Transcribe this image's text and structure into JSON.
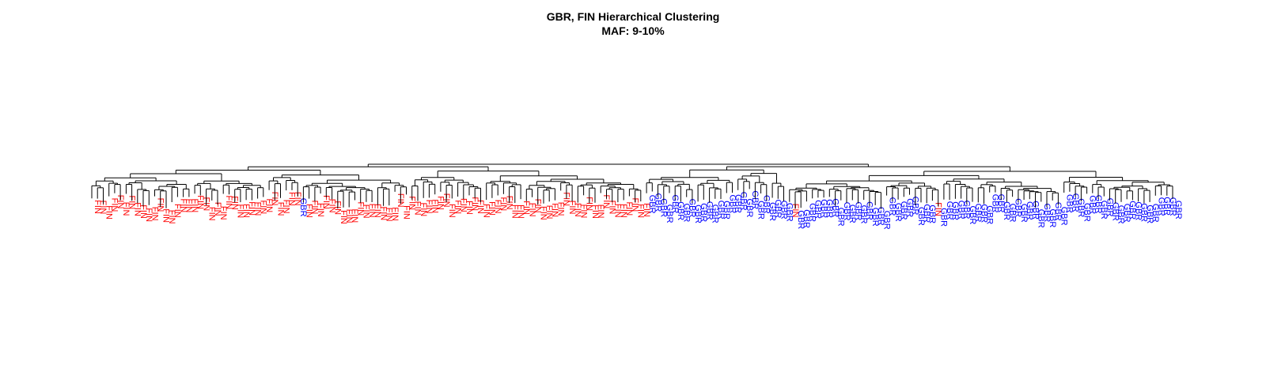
{
  "chart_data": {
    "type": "dendrogram",
    "title": "GBR, FIN Hierarchical Clustering",
    "subtitle": "MAF: 9-10%",
    "legend": "none",
    "grid": false,
    "colors": {
      "FIN": "#ff0000",
      "GBR": "#0000ff",
      "lines": "#000000"
    },
    "clusters": [
      {
        "label": "FIN",
        "leaf_count": 96,
        "extra_members": [
          "GBR"
        ]
      },
      {
        "label": "GBR",
        "leaf_count": 91,
        "extra_members": [
          "FIN",
          "FIN"
        ]
      }
    ]
  }
}
